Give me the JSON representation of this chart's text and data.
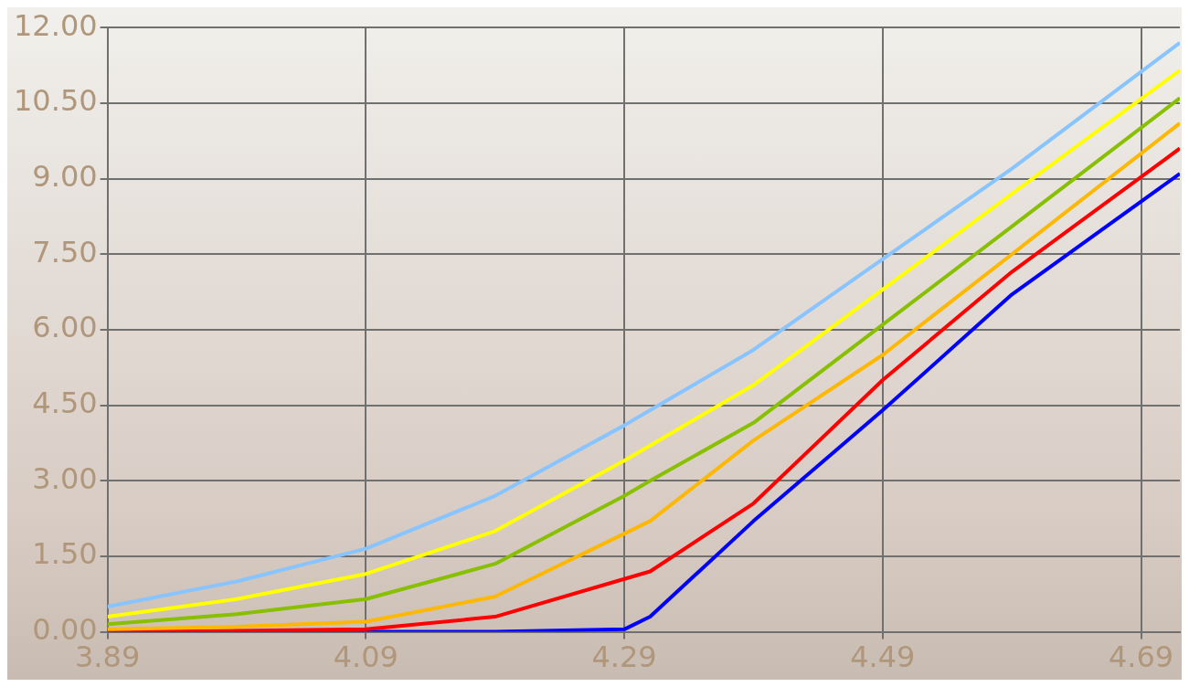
{
  "chart_data": {
    "type": "line",
    "x": [
      3.89,
      3.99,
      4.09,
      4.19,
      4.29,
      4.31,
      4.39,
      4.49,
      4.59,
      4.72
    ],
    "series": [
      {
        "color": "#88c4ff",
        "values": [
          0.5,
          1.0,
          1.65,
          2.7,
          4.1,
          4.4,
          5.6,
          7.4,
          9.2,
          11.7
        ]
      },
      {
        "color": "#ffff00",
        "values": [
          0.3,
          0.65,
          1.15,
          2.0,
          3.4,
          3.7,
          4.9,
          6.8,
          8.7,
          11.15
        ]
      },
      {
        "color": "#88c000",
        "values": [
          0.15,
          0.35,
          0.65,
          1.35,
          2.7,
          3.0,
          4.15,
          6.1,
          8.05,
          10.6
        ]
      },
      {
        "color": "#ffb800",
        "values": [
          0.05,
          0.1,
          0.2,
          0.7,
          1.95,
          2.2,
          3.8,
          5.5,
          7.5,
          10.1
        ]
      },
      {
        "color": "#ff0000",
        "values": [
          0,
          0.02,
          0.05,
          0.3,
          1.05,
          1.2,
          2.55,
          5.0,
          7.15,
          9.6
        ]
      },
      {
        "color": "#0000ff",
        "values": [
          0,
          0,
          0,
          0,
          0.05,
          0.3,
          2.2,
          4.4,
          6.7,
          9.1
        ]
      }
    ],
    "xlim": [
      3.89,
      4.72
    ],
    "xticks": [
      3.89,
      4.09,
      4.29,
      4.49,
      4.69
    ],
    "ylim": [
      0,
      12
    ],
    "yticks": [
      {
        "value": 0,
        "label": "0.00"
      },
      {
        "value": 1.5,
        "label": "1.50"
      },
      {
        "value": 3,
        "label": "3.00"
      },
      {
        "value": 4.5,
        "label": "4.50"
      },
      {
        "value": 6,
        "label": "6.00"
      },
      {
        "value": 7.5,
        "label": "7.50"
      },
      {
        "value": 9,
        "label": "9.00"
      },
      {
        "value": 10.5,
        "label": "10.50"
      },
      {
        "value": 12,
        "label": "12.00"
      }
    ],
    "grid": true,
    "legend": false,
    "marker": "none",
    "line_style": "solid"
  }
}
